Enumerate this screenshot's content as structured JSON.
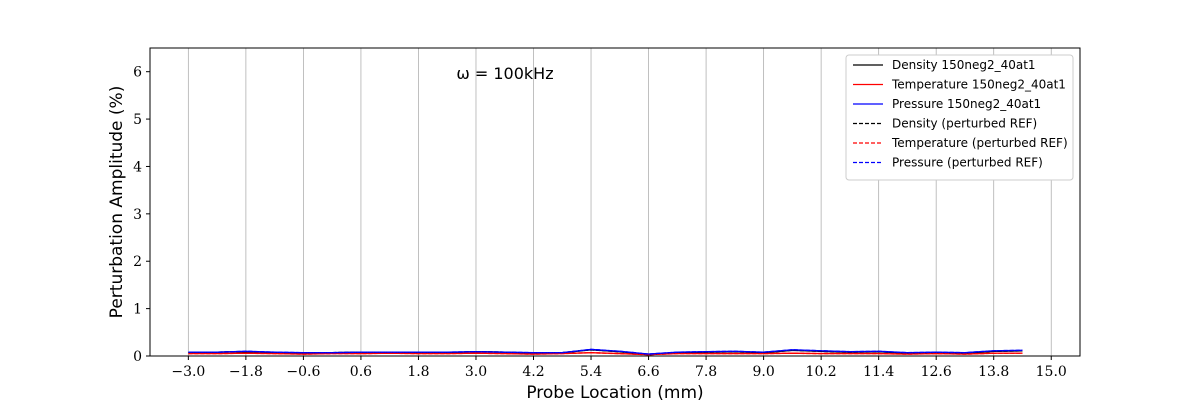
{
  "chart_data": {
    "type": "line",
    "title": "",
    "xlabel": "Probe Location (mm)",
    "ylabel": "Perturbation Amplitude (%)",
    "annotation": "ω = 100kHz",
    "xlim": [
      -3.8,
      15.6
    ],
    "ylim": [
      0,
      6.5
    ],
    "xticks": [
      -3.0,
      -1.8,
      -0.6,
      0.6,
      1.8,
      3.0,
      4.2,
      5.4,
      6.6,
      7.8,
      9.0,
      10.2,
      11.4,
      12.6,
      13.8,
      15.0
    ],
    "xtick_labels": [
      "−3.0",
      "−1.8",
      "−0.6",
      "0.6",
      "1.8",
      "3.0",
      "4.2",
      "5.4",
      "6.6",
      "7.8",
      "9.0",
      "10.2",
      "11.4",
      "12.6",
      "13.8",
      "15.0"
    ],
    "yticks": [
      0,
      1,
      2,
      3,
      4,
      5,
      6
    ],
    "ytick_labels": [
      "0",
      "1",
      "2",
      "3",
      "4",
      "5",
      "6"
    ],
    "grid": "x-major",
    "legend_position": "top-right",
    "x": [
      -3.0,
      -2.4,
      -1.8,
      -1.2,
      -0.6,
      0.0,
      0.6,
      1.2,
      1.8,
      2.4,
      3.0,
      3.6,
      4.2,
      4.8,
      5.4,
      6.0,
      6.6,
      7.2,
      7.8,
      8.4,
      9.0,
      9.6,
      10.2,
      10.8,
      11.4,
      12.0,
      12.6,
      13.2,
      13.8,
      14.4
    ],
    "series": [
      {
        "name": "Density 150neg2_40at1",
        "color": "#000000",
        "dash": "solid",
        "values": [
          0.07,
          0.08,
          0.09,
          0.07,
          0.06,
          0.07,
          0.08,
          0.08,
          0.07,
          0.07,
          0.09,
          0.08,
          0.06,
          0.07,
          0.13,
          0.09,
          0.03,
          0.07,
          0.08,
          0.09,
          0.07,
          0.12,
          0.1,
          0.08,
          0.09,
          0.06,
          0.07,
          0.06,
          0.1,
          0.11
        ]
      },
      {
        "name": "Temperature 150neg2_40at1",
        "color": "#ff0000",
        "dash": "solid",
        "values": [
          0.05,
          0.05,
          0.06,
          0.05,
          0.04,
          0.05,
          0.05,
          0.06,
          0.05,
          0.05,
          0.06,
          0.05,
          0.04,
          0.05,
          0.07,
          0.05,
          0.03,
          0.05,
          0.05,
          0.05,
          0.05,
          0.06,
          0.05,
          0.05,
          0.05,
          0.04,
          0.05,
          0.04,
          0.06,
          0.06
        ]
      },
      {
        "name": "Pressure 150neg2_40at1",
        "color": "#0000ff",
        "dash": "solid",
        "values": [
          0.08,
          0.08,
          0.1,
          0.08,
          0.07,
          0.07,
          0.08,
          0.08,
          0.08,
          0.08,
          0.09,
          0.08,
          0.07,
          0.07,
          0.14,
          0.1,
          0.04,
          0.08,
          0.09,
          0.1,
          0.08,
          0.13,
          0.11,
          0.09,
          0.1,
          0.07,
          0.08,
          0.07,
          0.11,
          0.12
        ]
      },
      {
        "name": "Density (perturbed REF)",
        "color": "#000000",
        "dash": "dashed",
        "values": [
          0.07,
          0.08,
          0.09,
          0.07,
          0.06,
          0.07,
          0.08,
          0.08,
          0.07,
          0.07,
          0.09,
          0.08,
          0.06,
          0.07,
          0.13,
          0.09,
          0.03,
          0.07,
          0.08,
          0.09,
          0.07,
          0.12,
          0.1,
          0.08,
          0.09,
          0.06,
          0.07,
          0.06,
          0.1,
          0.11
        ]
      },
      {
        "name": "Temperature (perturbed REF)",
        "color": "#ff0000",
        "dash": "dashed",
        "values": [
          0.05,
          0.05,
          0.06,
          0.05,
          0.04,
          0.05,
          0.05,
          0.06,
          0.05,
          0.05,
          0.06,
          0.05,
          0.04,
          0.05,
          0.07,
          0.05,
          0.03,
          0.05,
          0.05,
          0.05,
          0.05,
          0.06,
          0.05,
          0.05,
          0.05,
          0.04,
          0.05,
          0.04,
          0.06,
          0.06
        ]
      },
      {
        "name": "Pressure (perturbed REF)",
        "color": "#0000ff",
        "dash": "dashed",
        "values": [
          0.08,
          0.08,
          0.1,
          0.08,
          0.07,
          0.07,
          0.08,
          0.08,
          0.08,
          0.08,
          0.09,
          0.08,
          0.07,
          0.07,
          0.14,
          0.1,
          0.04,
          0.08,
          0.09,
          0.1,
          0.08,
          0.13,
          0.11,
          0.09,
          0.1,
          0.07,
          0.08,
          0.07,
          0.11,
          0.12
        ]
      }
    ]
  }
}
